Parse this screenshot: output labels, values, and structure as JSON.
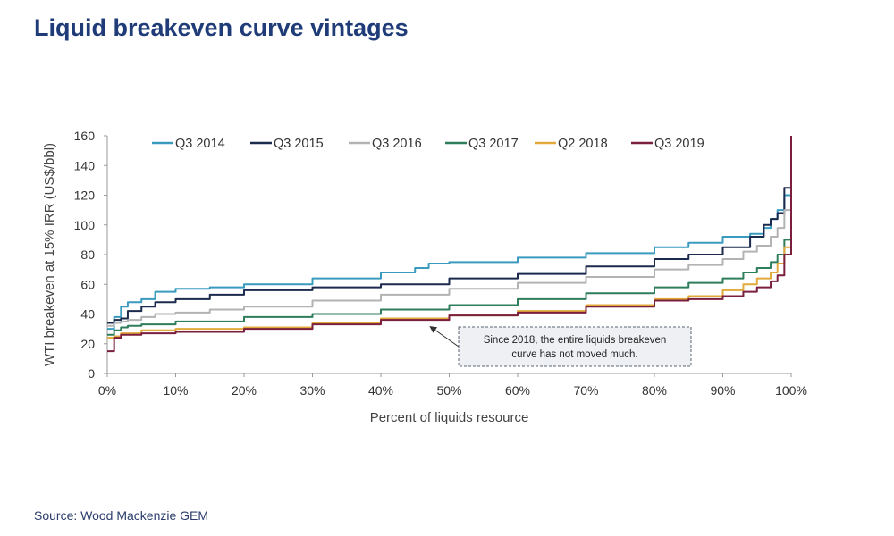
{
  "title": "Liquid breakeven curve vintages",
  "source": "Source: Wood Mackenzie GEM",
  "colors": {
    "title": "#1f3c78",
    "axis": "#9a9a9a",
    "annotation_box": "#eef0f3",
    "annotation_border": "#5b6473"
  },
  "chart_data": {
    "type": "line",
    "title": "",
    "xlabel": "Percent of liquids resource",
    "ylabel": "WTI breakeven at 15% IRR (US$/bbl)",
    "xlim": [
      0,
      100
    ],
    "ylim": [
      0,
      160
    ],
    "x_ticks": [
      0,
      10,
      20,
      30,
      40,
      50,
      60,
      70,
      80,
      90,
      100
    ],
    "x_tick_labels": [
      "0%",
      "10%",
      "20%",
      "30%",
      "40%",
      "50%",
      "60%",
      "70%",
      "80%",
      "90%",
      "100%"
    ],
    "y_ticks": [
      0,
      20,
      40,
      60,
      80,
      100,
      120,
      140,
      160
    ],
    "y_tick_labels": [
      "0",
      "20",
      "40",
      "60",
      "80",
      "100",
      "120",
      "140",
      "160"
    ],
    "grid": false,
    "legend_position": "top",
    "series": [
      {
        "name": "Q3 2014",
        "color": "#3a9bbf",
        "x": [
          0,
          1,
          2,
          3,
          5,
          7,
          10,
          15,
          20,
          30,
          40,
          45,
          47,
          50,
          60,
          70,
          80,
          85,
          90,
          94,
          96,
          97,
          98,
          99,
          100
        ],
        "y": [
          30,
          38,
          45,
          48,
          50,
          55,
          57,
          58,
          60,
          64,
          68,
          71,
          74,
          75,
          78,
          81,
          85,
          88,
          92,
          94,
          98,
          104,
          110,
          120,
          130
        ]
      },
      {
        "name": "Q3 2015",
        "color": "#1c2a4d",
        "x": [
          0,
          1,
          2,
          3,
          5,
          7,
          10,
          15,
          20,
          30,
          40,
          50,
          60,
          70,
          80,
          85,
          90,
          94,
          96,
          97,
          98,
          99,
          100
        ],
        "y": [
          34,
          36,
          37,
          42,
          45,
          48,
          50,
          53,
          56,
          58,
          60,
          64,
          67,
          72,
          77,
          80,
          85,
          92,
          100,
          104,
          108,
          125,
          140
        ]
      },
      {
        "name": "Q3 2016",
        "color": "#b3b3b3",
        "x": [
          0,
          1,
          2,
          3,
          5,
          7,
          10,
          15,
          20,
          30,
          40,
          50,
          60,
          70,
          80,
          85,
          90,
          93,
          95,
          97,
          98,
          99,
          100
        ],
        "y": [
          32,
          34,
          35,
          36,
          38,
          40,
          41,
          43,
          45,
          49,
          53,
          57,
          61,
          65,
          70,
          73,
          77,
          82,
          86,
          92,
          98,
          110,
          120
        ]
      },
      {
        "name": "Q3 2017",
        "color": "#2e7d5b",
        "x": [
          0,
          1,
          2,
          3,
          5,
          10,
          20,
          30,
          40,
          50,
          60,
          70,
          80,
          85,
          90,
          93,
          95,
          97,
          98,
          99,
          100
        ],
        "y": [
          26,
          29,
          31,
          32,
          33,
          35,
          38,
          40,
          43,
          46,
          50,
          54,
          58,
          61,
          64,
          68,
          71,
          75,
          80,
          90,
          100
        ]
      },
      {
        "name": "Q2 2018",
        "color": "#e0a93a",
        "x": [
          0,
          1,
          2,
          5,
          10,
          20,
          30,
          40,
          50,
          60,
          70,
          80,
          85,
          90,
          93,
          95,
          97,
          98,
          99,
          100
        ],
        "y": [
          24,
          25,
          27,
          29,
          30,
          31,
          34,
          37,
          39,
          42,
          46,
          50,
          52,
          56,
          60,
          64,
          68,
          74,
          85,
          100
        ]
      },
      {
        "name": "Q3 2019",
        "color": "#7a1f3d",
        "x": [
          0,
          1,
          2,
          5,
          10,
          20,
          30,
          40,
          50,
          60,
          70,
          80,
          85,
          90,
          93,
          95,
          97,
          98,
          99,
          100
        ],
        "y": [
          15,
          24,
          26,
          27,
          28,
          30,
          33,
          36,
          39,
          41,
          45,
          49,
          50,
          52,
          55,
          58,
          62,
          66,
          80,
          160
        ]
      }
    ],
    "annotation": {
      "lines": [
        "Since 2018, the entire liquids breakeven",
        "curve has not moved  much."
      ],
      "arrow_target": {
        "x": 46,
        "y": 36
      }
    }
  }
}
